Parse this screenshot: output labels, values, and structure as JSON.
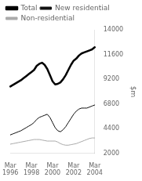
{
  "chart_data": {
    "type": "line",
    "ylabel": "$m",
    "categories": [
      "Mar\n1996",
      null,
      null,
      null,
      null,
      null,
      null,
      null,
      "Mar\n1998",
      null,
      null,
      null,
      null,
      null,
      null,
      null,
      "Mar\n2000",
      null,
      null,
      null,
      null,
      null,
      null,
      null,
      "Mar\n2002",
      null,
      null,
      null,
      null,
      null,
      null,
      null,
      "Mar\n2004"
    ],
    "series": [
      {
        "name": "Total",
        "color": "#000000",
        "values": [
          8500,
          8650,
          8800,
          8950,
          9100,
          9300,
          9500,
          9700,
          9900,
          10100,
          10500,
          10700,
          10800,
          10600,
          10200,
          9600,
          9000,
          8700,
          8750,
          8900,
          9200,
          9600,
          10100,
          10600,
          11000,
          11200,
          11500,
          11700,
          11800,
          11900,
          12000,
          12100,
          12300
        ]
      },
      {
        "name": "New residential",
        "color": "#111111",
        "values": [
          3800,
          3900,
          4000,
          4100,
          4200,
          4350,
          4500,
          4650,
          4800,
          5000,
          5300,
          5500,
          5600,
          5700,
          5800,
          5500,
          5000,
          4500,
          4200,
          4100,
          4300,
          4600,
          5000,
          5400,
          5800,
          6100,
          6300,
          6400,
          6400,
          6400,
          6500,
          6600,
          6700
        ]
      },
      {
        "name": "Non-residential",
        "color": "#aaaaaa",
        "values": [
          2900,
          2950,
          3000,
          3050,
          3100,
          3150,
          3200,
          3250,
          3300,
          3350,
          3350,
          3350,
          3300,
          3250,
          3200,
          3200,
          3200,
          3200,
          3100,
          2950,
          2850,
          2800,
          2800,
          2850,
          2900,
          2950,
          3050,
          3150,
          3250,
          3350,
          3450,
          3500,
          3500
        ]
      }
    ],
    "ylim": [
      2000,
      14000
    ],
    "yticks": [
      2000,
      4400,
      6800,
      9200,
      11600,
      14000
    ],
    "grid": false,
    "legend": "upper left"
  }
}
